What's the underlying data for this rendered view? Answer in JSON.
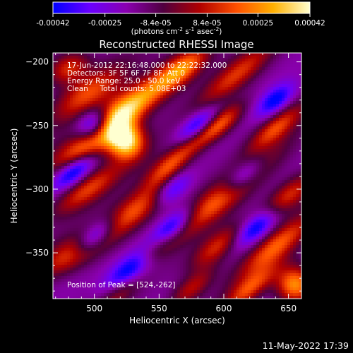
{
  "colorbar": {
    "tick_labels": [
      "-0.00042",
      "-0.00025",
      "-8.4e-05",
      "8.4e-05",
      "0.00025",
      "0.00042"
    ],
    "tick_values": [
      -0.00042,
      -0.00025,
      -8.4e-05,
      8.4e-05,
      0.00025,
      0.00042
    ],
    "range": [
      -0.00042,
      0.00042
    ],
    "units_prefix": "(photons cm",
    "units_exp1": "-2",
    "units_mid": " s",
    "units_exp2": "-1",
    "units_tail": " asec",
    "units_exp3": "-2",
    "units_close": ")"
  },
  "info_lines": [
    "17-Jun-2012 22:16:48.000 to 22:22:32.000",
    "Detectors: 3F 5F 6F 7F 8F, Att 0",
    "Energy Range: 25.0 - 50.0 keV",
    "Clean     Total counts: 5.08E+03"
  ],
  "peak_label": "Position of Peak = [524,-262]",
  "footer_date": "11-May-2022 17:39",
  "chart_data": {
    "type": "heatmap",
    "title": "Reconstructed RHESSI Image",
    "xlabel": "Heliocentric X (arcsec)",
    "ylabel": "Heliocentric Y (arcsec)",
    "xlim": [
      468,
      660
    ],
    "ylim": [
      -386,
      -193
    ],
    "x_ticks": [
      500,
      550,
      600,
      650
    ],
    "x_tick_labels": [
      "500",
      "550",
      "600",
      "650"
    ],
    "y_ticks": [
      -200,
      -250,
      -300,
      -350
    ],
    "y_tick_labels": [
      "-200",
      "-250",
      "-300",
      "-350"
    ],
    "peak": [
      524,
      -262
    ],
    "colormap": [
      "#0000ff",
      "#6a00ff",
      "#8a00b0",
      "#500040",
      "#b00000",
      "#ff5000",
      "#ffb000",
      "#ffffd0"
    ],
    "features": [
      {
        "x": 524,
        "y": -262,
        "sx": 10,
        "sy": 10,
        "amp": 1.0,
        "angle": 0
      },
      {
        "x": 515,
        "y": -245,
        "sx": 20,
        "sy": 9,
        "amp": 0.7,
        "angle": 40
      },
      {
        "x": 545,
        "y": -222,
        "sx": 30,
        "sy": 8,
        "amp": 0.6,
        "angle": 40
      },
      {
        "x": 495,
        "y": -225,
        "sx": 22,
        "sy": 9,
        "amp": 0.5,
        "angle": 35
      },
      {
        "x": 490,
        "y": -270,
        "sx": 20,
        "sy": 8,
        "amp": 0.55,
        "angle": 30
      },
      {
        "x": 480,
        "y": -205,
        "sx": 12,
        "sy": 8,
        "amp": 0.5,
        "angle": 30
      },
      {
        "x": 570,
        "y": -205,
        "sx": 16,
        "sy": 7,
        "amp": 0.45,
        "angle": 40
      },
      {
        "x": 610,
        "y": -210,
        "sx": 25,
        "sy": 7,
        "amp": 0.45,
        "angle": 40
      },
      {
        "x": 598,
        "y": -248,
        "sx": 15,
        "sy": 6,
        "amp": 0.5,
        "angle": 40
      },
      {
        "x": 640,
        "y": -252,
        "sx": 18,
        "sy": 6,
        "amp": 0.5,
        "angle": 40
      },
      {
        "x": 575,
        "y": -265,
        "sx": 22,
        "sy": 6,
        "amp": 0.4,
        "angle": 40
      },
      {
        "x": 555,
        "y": -285,
        "sx": 15,
        "sy": 6,
        "amp": 0.35,
        "angle": 40
      },
      {
        "x": 530,
        "y": -318,
        "sx": 26,
        "sy": 8,
        "amp": 0.6,
        "angle": 38
      },
      {
        "x": 600,
        "y": -305,
        "sx": 35,
        "sy": 8,
        "amp": 0.6,
        "angle": 40
      },
      {
        "x": 650,
        "y": -305,
        "sx": 18,
        "sy": 7,
        "amp": 0.5,
        "angle": 40
      },
      {
        "x": 495,
        "y": -300,
        "sx": 22,
        "sy": 7,
        "amp": 0.5,
        "angle": 35
      },
      {
        "x": 485,
        "y": -350,
        "sx": 20,
        "sy": 8,
        "amp": 0.55,
        "angle": 30
      },
      {
        "x": 595,
        "y": -345,
        "sx": 18,
        "sy": 7,
        "amp": 0.5,
        "angle": 40
      },
      {
        "x": 640,
        "y": -345,
        "sx": 25,
        "sy": 7,
        "amp": 0.55,
        "angle": 40
      },
      {
        "x": 545,
        "y": -350,
        "sx": 15,
        "sy": 6,
        "amp": 0.4,
        "angle": 40
      },
      {
        "x": 655,
        "y": -375,
        "sx": 10,
        "sy": 10,
        "amp": 0.75,
        "angle": 0
      },
      {
        "x": 620,
        "y": -378,
        "sx": 18,
        "sy": 6,
        "amp": 0.5,
        "angle": 40
      },
      {
        "x": 575,
        "y": -378,
        "sx": 15,
        "sy": 6,
        "amp": 0.4,
        "angle": 40
      },
      {
        "x": 520,
        "y": -380,
        "sx": 15,
        "sy": 6,
        "amp": 0.35,
        "angle": 40
      },
      {
        "x": 500,
        "y": -250,
        "sx": 10,
        "sy": 8,
        "amp": -0.7,
        "angle": 40
      },
      {
        "x": 485,
        "y": -285,
        "sx": 14,
        "sy": 6,
        "amp": -0.6,
        "angle": 40
      },
      {
        "x": 500,
        "y": -338,
        "sx": 14,
        "sy": 6,
        "amp": -0.65,
        "angle": 40
      },
      {
        "x": 530,
        "y": -362,
        "sx": 18,
        "sy": 7,
        "amp": -0.75,
        "angle": 40
      },
      {
        "x": 560,
        "y": -330,
        "sx": 14,
        "sy": 6,
        "amp": -0.6,
        "angle": 40
      },
      {
        "x": 580,
        "y": -250,
        "sx": 14,
        "sy": 6,
        "amp": -0.55,
        "angle": 40
      },
      {
        "x": 615,
        "y": -290,
        "sx": 14,
        "sy": 6,
        "amp": -0.6,
        "angle": 40
      },
      {
        "x": 625,
        "y": -330,
        "sx": 14,
        "sy": 6,
        "amp": -0.55,
        "angle": 40
      },
      {
        "x": 640,
        "y": -230,
        "sx": 12,
        "sy": 6,
        "amp": -0.5,
        "angle": 40
      },
      {
        "x": 560,
        "y": -300,
        "sx": 12,
        "sy": 6,
        "amp": -0.45,
        "angle": 40
      }
    ]
  }
}
